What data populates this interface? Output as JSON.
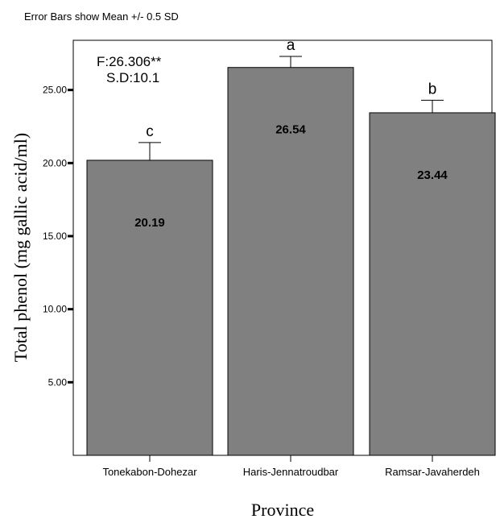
{
  "chart_data": {
    "type": "bar",
    "subtitle": "Error Bars show Mean +/- 0.5 SD",
    "xlabel": "Province",
    "ylabel": "Total phenol (mg gallic acid/ml)",
    "categories": [
      "Tonekabon-Dohezar",
      "Haris-Jennatroudbar",
      "Ramsar-Javaherdeh"
    ],
    "values": [
      20.19,
      26.54,
      23.44
    ],
    "value_labels": [
      "20.19",
      "26.54",
      "23.44"
    ],
    "error_upper": [
      21.4,
      27.3,
      24.3
    ],
    "group_letters": [
      "c",
      "a",
      "b"
    ],
    "yticks": [
      5,
      10,
      15,
      20,
      25
    ],
    "ytick_labels": [
      "5.00",
      "10.00",
      "15.00",
      "20.00",
      "25.00"
    ],
    "ylim": [
      0,
      28.4
    ],
    "annotations": [
      "F:26.306**",
      "S.D:10.1"
    ],
    "bar_color": "#808080",
    "grid": false,
    "legend": "none"
  }
}
